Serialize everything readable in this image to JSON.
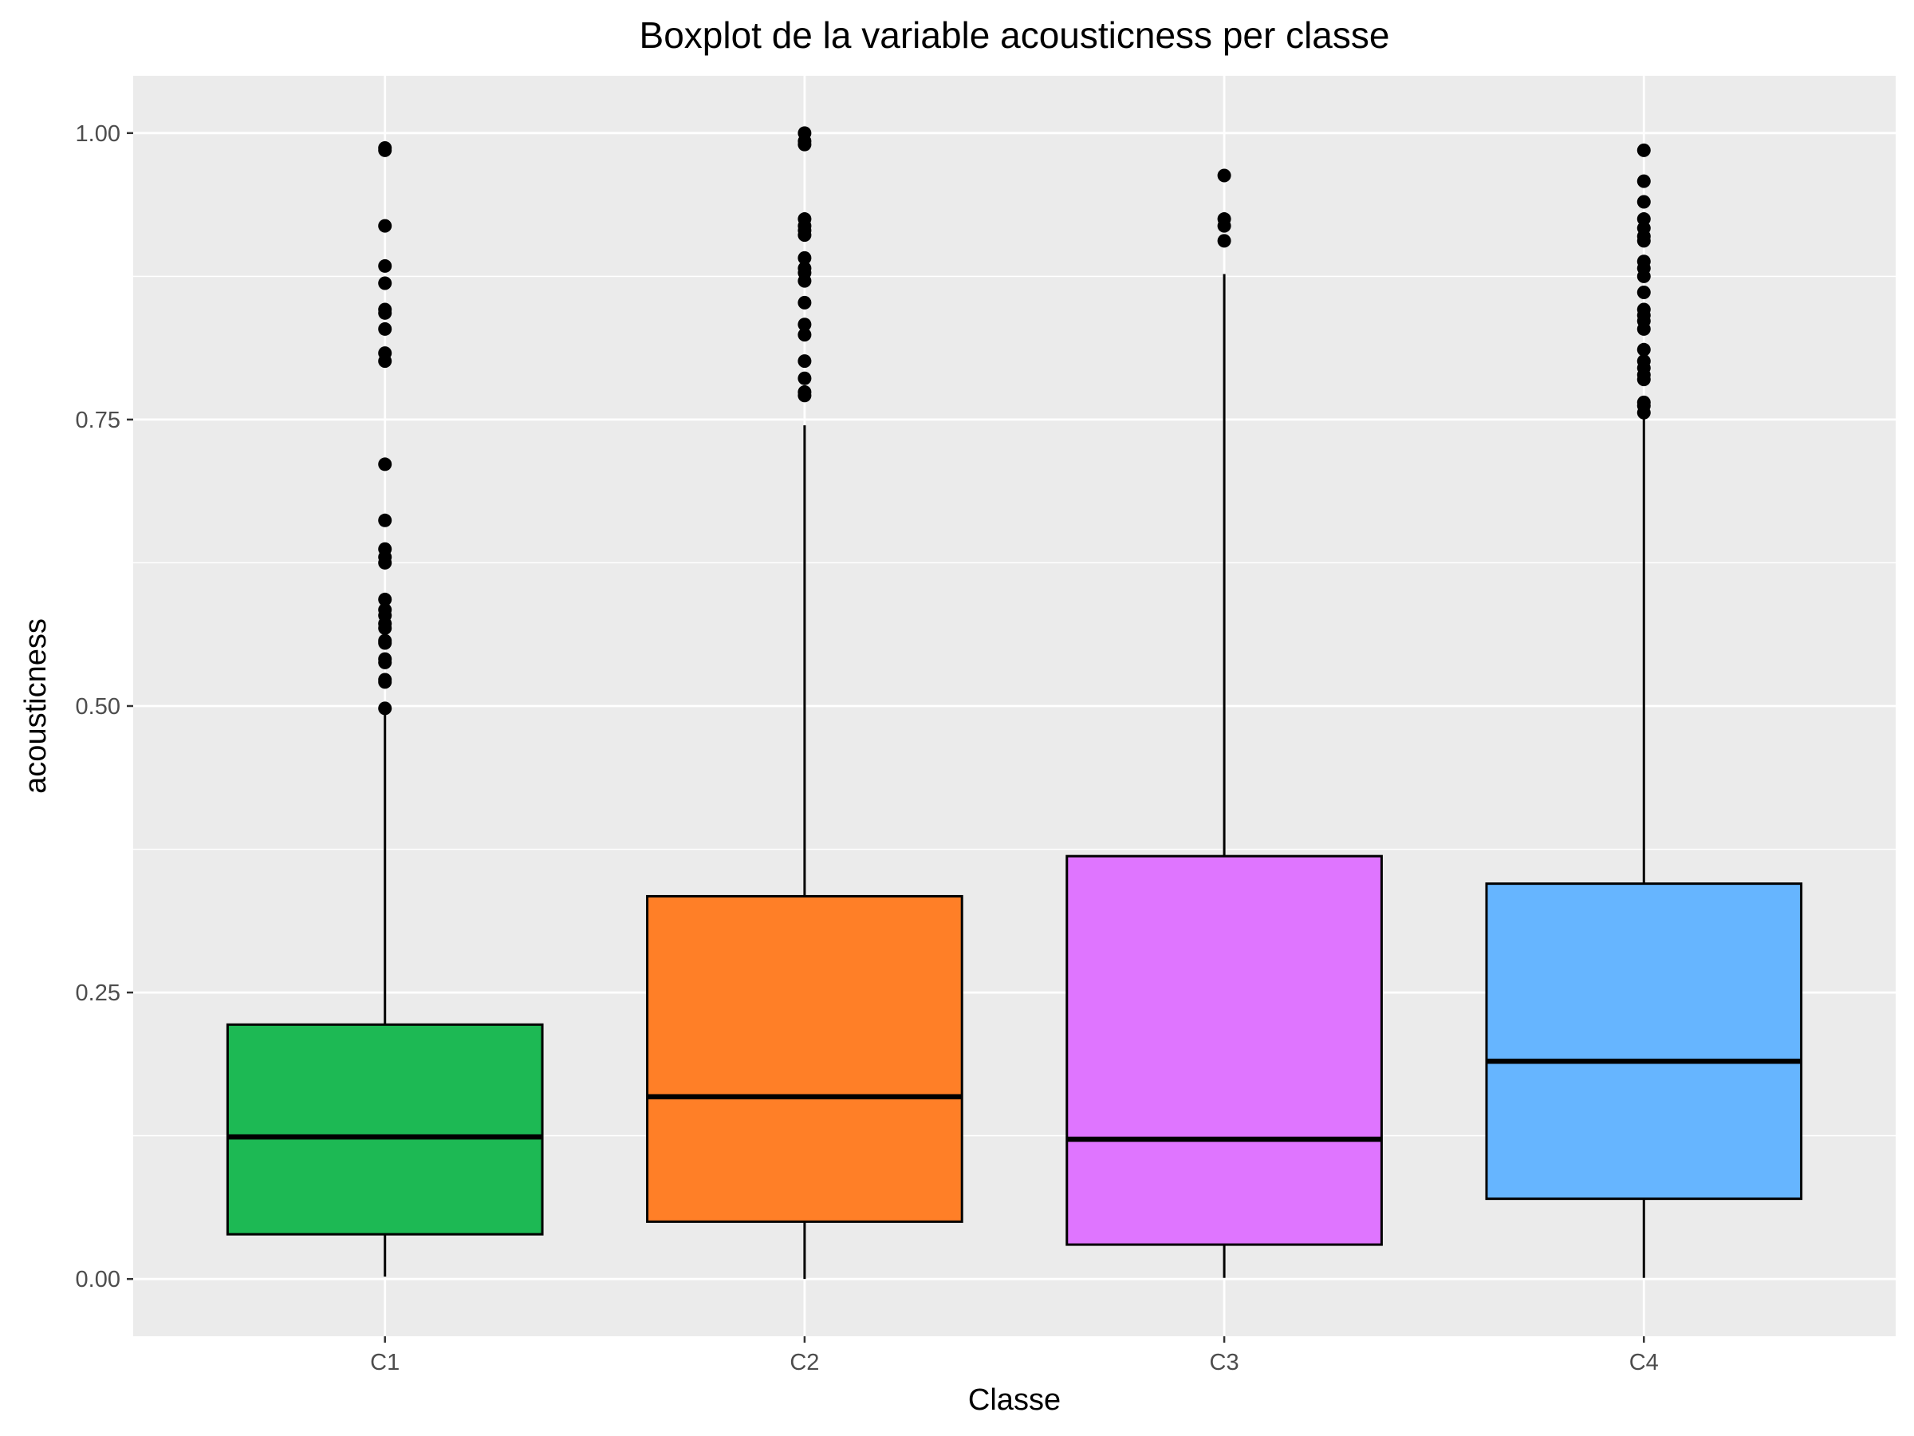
{
  "chart_data": {
    "type": "boxplot",
    "title": "Boxplot de la variable acousticness per classe",
    "xlabel": "Classe",
    "ylabel": "acousticness",
    "ylim": [
      -0.05,
      1.05
    ],
    "yticks": [
      0.0,
      0.25,
      0.5,
      0.75,
      1.0
    ],
    "ytick_labels": [
      "0.00",
      "0.25",
      "0.50",
      "0.75",
      "1.00"
    ],
    "grid": true,
    "legend": "none",
    "categories": [
      "C1",
      "C2",
      "C3",
      "C4"
    ],
    "boxes": [
      {
        "category": "C1",
        "color": "#1db954",
        "whisker_low": 0.002,
        "q1": 0.039,
        "median": 0.124,
        "q3": 0.222,
        "whisker_high": 0.496,
        "outliers": [
          0.498,
          0.521,
          0.523,
          0.538,
          0.541,
          0.555,
          0.557,
          0.568,
          0.572,
          0.579,
          0.584,
          0.593,
          0.625,
          0.63,
          0.637,
          0.662,
          0.711,
          0.801,
          0.808,
          0.829,
          0.843,
          0.846,
          0.869,
          0.884,
          0.919,
          0.985,
          0.987
        ]
      },
      {
        "category": "C2",
        "color": "#ff7f27",
        "whisker_low": 0.0,
        "q1": 0.05,
        "median": 0.159,
        "q3": 0.334,
        "whisker_high": 0.745,
        "outliers": [
          0.771,
          0.774,
          0.786,
          0.801,
          0.824,
          0.833,
          0.852,
          0.871,
          0.878,
          0.882,
          0.891,
          0.911,
          0.915,
          0.919,
          0.925,
          0.99,
          0.993,
          1.0
        ]
      },
      {
        "category": "C3",
        "color": "#df75ff",
        "whisker_low": 0.001,
        "q1": 0.03,
        "median": 0.122,
        "q3": 0.369,
        "whisker_high": 0.877,
        "outliers": [
          0.906,
          0.919,
          0.925,
          0.963
        ]
      },
      {
        "category": "C4",
        "color": "#66b5ff",
        "whisker_low": 0.001,
        "q1": 0.07,
        "median": 0.19,
        "q3": 0.345,
        "whisker_high": 0.752,
        "outliers": [
          0.756,
          0.762,
          0.765,
          0.785,
          0.789,
          0.795,
          0.801,
          0.811,
          0.829,
          0.836,
          0.841,
          0.846,
          0.861,
          0.875,
          0.882,
          0.888,
          0.906,
          0.91,
          0.917,
          0.925,
          0.94,
          0.958,
          0.985
        ]
      }
    ]
  }
}
